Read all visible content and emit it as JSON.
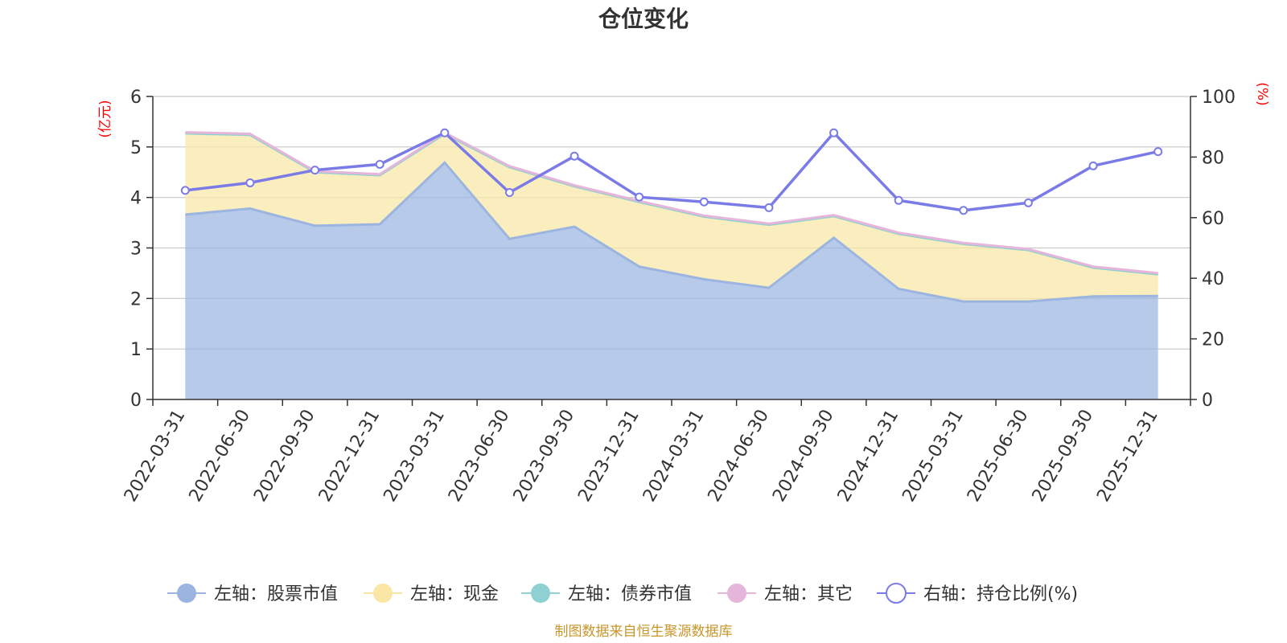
{
  "chart_data": {
    "type": "area",
    "title": "仓位变化",
    "source_note": "制图数据来自恒生聚源数据库",
    "left_axis": {
      "unit_label": "(亿元)",
      "min": 0,
      "max": 6,
      "ticks": [
        0,
        1,
        2,
        3,
        4,
        5,
        6
      ]
    },
    "right_axis": {
      "unit_label": "(%)",
      "min": 0,
      "max": 100,
      "ticks": [
        0,
        20,
        40,
        60,
        80,
        100
      ]
    },
    "categories": [
      "2022-03-31",
      "2022-06-30",
      "2022-09-30",
      "2022-12-31",
      "2023-03-31",
      "2023-06-30",
      "2023-09-30",
      "2023-12-31",
      "2024-03-31",
      "2024-06-30",
      "2024-09-30",
      "2024-12-31",
      "2025-03-31",
      "2025-06-30",
      "2025-09-30",
      "2025-12-31"
    ],
    "series": [
      {
        "name": "左轴：股票市值",
        "axis": "left",
        "kind": "stacked-area",
        "color": "#9bb5e0",
        "values": [
          3.66,
          3.78,
          3.44,
          3.47,
          4.69,
          3.18,
          3.42,
          2.63,
          2.38,
          2.21,
          3.2,
          2.19,
          1.94,
          1.94,
          2.04,
          2.05
        ]
      },
      {
        "name": "左轴：现金",
        "axis": "left",
        "kind": "stacked-area",
        "color": "#fae7a5",
        "values": [
          1.61,
          1.46,
          1.06,
          0.97,
          0.57,
          1.42,
          0.8,
          1.28,
          1.24,
          1.25,
          0.43,
          1.09,
          1.14,
          1.02,
          0.57,
          0.43
        ]
      },
      {
        "name": "左轴：债券市值",
        "axis": "left",
        "kind": "stacked-area",
        "color": "#8fd1d1",
        "values": [
          0,
          0,
          0,
          0,
          0,
          0,
          0,
          0,
          0,
          0,
          0,
          0,
          0,
          0,
          0,
          0
        ]
      },
      {
        "name": "左轴：其它",
        "axis": "left",
        "kind": "stacked-area",
        "color": "#e6b5da",
        "values": [
          0.02,
          0.02,
          0.02,
          0.02,
          0.02,
          0.02,
          0.02,
          0.02,
          0.02,
          0.02,
          0.02,
          0.02,
          0.02,
          0.02,
          0.02,
          0.02
        ]
      },
      {
        "name": "右轴：持仓比例(%)",
        "axis": "right",
        "kind": "line",
        "color": "#7b7be8",
        "values": [
          69.0,
          71.5,
          75.7,
          77.6,
          88.0,
          68.3,
          80.3,
          66.8,
          65.2,
          63.3,
          88.0,
          65.7,
          62.4,
          64.9,
          77.1,
          81.8
        ]
      }
    ]
  }
}
